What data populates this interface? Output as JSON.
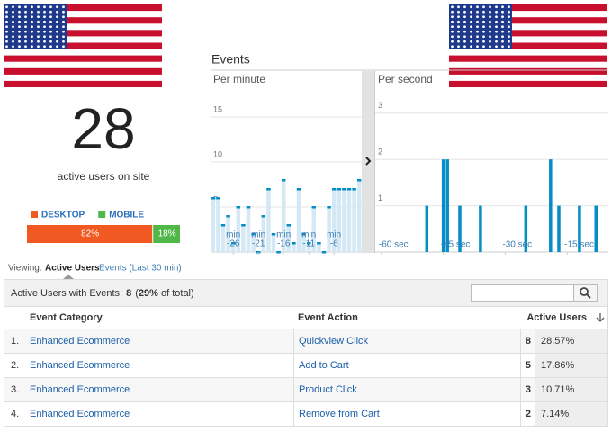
{
  "active_users": {
    "count": 28,
    "caption": "active users on site",
    "devices": [
      {
        "name": "DESKTOP",
        "color": "#f05a22",
        "value": 82,
        "value_label": "82%"
      },
      {
        "name": "MOBILE",
        "color": "#50b848",
        "value": 18,
        "value_label": "18%"
      }
    ]
  },
  "events_title": "Events",
  "chart_data": [
    {
      "type": "bar",
      "title": "Per minute",
      "x_unit": "min",
      "x": [
        -30,
        -29,
        -28,
        -27,
        -26,
        -25,
        -24,
        -23,
        -22,
        -21,
        -20,
        -19,
        -18,
        -17,
        -16,
        -15,
        -14,
        -13,
        -12,
        -11,
        -10,
        -9,
        -8,
        -7,
        -6,
        -5,
        -4,
        -3,
        -2,
        -1
      ],
      "values": [
        6,
        6,
        3,
        4,
        1,
        5,
        3,
        5,
        2,
        0,
        4,
        7,
        2,
        0,
        8,
        3,
        1,
        7,
        2,
        1,
        5,
        1,
        0,
        5,
        7,
        7,
        7,
        7,
        7,
        8
      ],
      "color": "#058dc7",
      "fill": "#d4e8f5",
      "xlim": [
        -30.5,
        -0.5
      ],
      "ylim": [
        0,
        18
      ],
      "yticks": [
        5,
        10,
        15
      ],
      "xticks": [
        -26,
        -21,
        -16,
        -11,
        -6
      ],
      "grid": true
    },
    {
      "type": "bar",
      "title": "Per second",
      "x": [
        -49,
        -45,
        -44,
        -41,
        -36,
        -25,
        -19,
        -17,
        -12,
        -8
      ],
      "values": [
        1,
        2,
        2,
        1,
        1,
        1,
        2,
        1,
        1,
        1
      ],
      "color": "#058dc7",
      "xlim": [
        -61.5,
        -5
      ],
      "ylim": [
        0,
        3.5
      ],
      "yticks": [
        1,
        2,
        3
      ],
      "xticks": [
        {
          "value": -60,
          "label": "-60 sec"
        },
        {
          "value": -45,
          "label": "-45 sec"
        },
        {
          "value": -30,
          "label": "-30 sec"
        },
        {
          "value": -15,
          "label": "-15 sec"
        }
      ],
      "grid": true
    }
  ],
  "viewing": {
    "label": "Viewing:",
    "tabs": [
      "Active Users",
      "Events (Last 30 min)"
    ]
  },
  "summary": {
    "label": "Active Users with Events:",
    "count": 8,
    "total_parts": [
      "(",
      "29%",
      " of total)"
    ]
  },
  "table": {
    "headers": [
      "Event Category",
      "Event Action",
      "Active Users"
    ],
    "rows": [
      [
        "1.",
        "Enhanced Ecommerce",
        "Quickview Click",
        8,
        "28.57%"
      ],
      [
        "2.",
        "Enhanced Ecommerce",
        "Add to Cart",
        5,
        "17.86%"
      ],
      [
        "3.",
        "Enhanced Ecommerce",
        "Product Click",
        3,
        "10.71%"
      ],
      [
        "4.",
        "Enhanced Ecommerce",
        "Remove from Cart",
        2,
        "7.14%"
      ]
    ]
  }
}
